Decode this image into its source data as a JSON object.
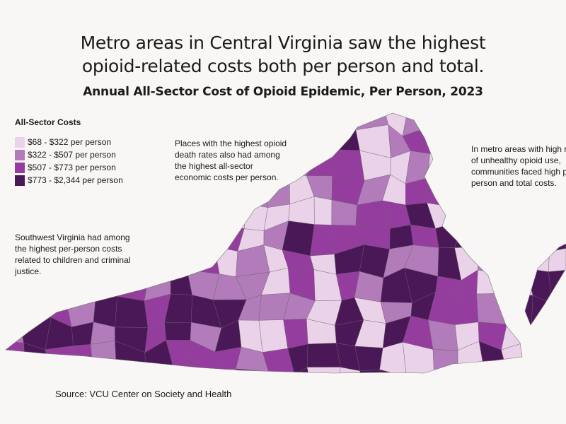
{
  "headline": [
    "Metro areas in Central Virginia saw the highest",
    "opioid-related costs both per person and total."
  ],
  "subtitle": "Annual All-Sector Cost of Opioid Epidemic, Per Person, 2023",
  "legend": {
    "title": "All-Sector Costs",
    "items": [
      {
        "label": "$68 - $322 per person",
        "color": "#ead3e8"
      },
      {
        "label": "$322 - $507 per person",
        "color": "#b27cba"
      },
      {
        "label": "$507 - $773 per person",
        "color": "#953d9e"
      },
      {
        "label": "$773 - $2,344 per person",
        "color": "#4a1856"
      }
    ]
  },
  "notes": {
    "center": [
      "Places with the highest opioid",
      "death rates also had among",
      "the highest all-sector",
      "economic costs per person."
    ],
    "southwest": [
      "Southwest Virginia had among",
      "the highest per-person costs",
      "related to children and criminal",
      "justice."
    ],
    "metro": [
      "In metro areas with high rat",
      "of unhealthy opioid use,",
      "communities faced high pe",
      "person and total costs."
    ]
  },
  "source": "Source: VCU Center on Society and Health"
}
